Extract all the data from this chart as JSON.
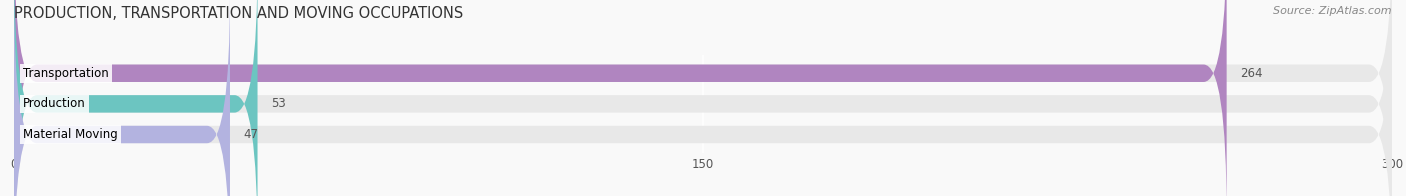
{
  "title": "PRODUCTION, TRANSPORTATION AND MOVING OCCUPATIONS",
  "source": "Source: ZipAtlas.com",
  "categories": [
    "Transportation",
    "Production",
    "Material Moving"
  ],
  "values": [
    264,
    53,
    47
  ],
  "bar_colors": [
    "#b57ec e",
    "#6cc5c1",
    "#b3b3e0"
  ],
  "xlim": [
    0,
    300
  ],
  "xticks": [
    0,
    150,
    300
  ],
  "background_color": "#f5f5f5",
  "bar_bg_color": "#e8e8e8",
  "title_fontsize": 11,
  "label_fontsize": 9,
  "value_fontsize": 9,
  "bar_height": 0.55
}
